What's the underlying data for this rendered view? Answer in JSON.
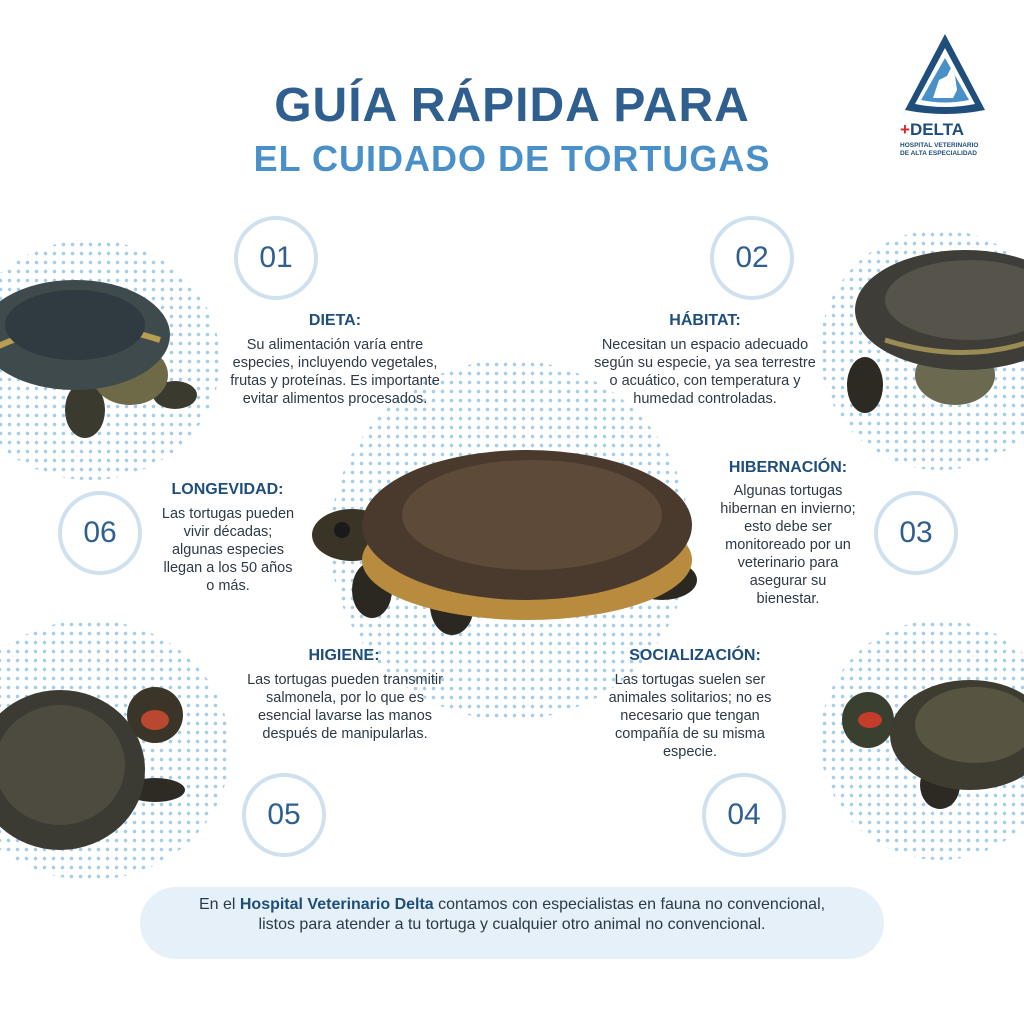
{
  "title": {
    "line1": "GUÍA RÁPIDA PARA",
    "line2": "EL CUIDADO DE TORTUGAS"
  },
  "logo": {
    "cross": "+",
    "name": "DELTA",
    "subtitle_line1": "HOSPITAL VETERINARIO",
    "subtitle_line2": "DE ALTA ESPECIALIDAD"
  },
  "sections": [
    {
      "number": "01",
      "title": "DIETA:",
      "text": "Su alimentación varía entre especies, incluyendo vegetales, frutas y proteínas. Es importante evitar alimentos procesados."
    },
    {
      "number": "02",
      "title": "HÁBITAT:",
      "text": "Necesitan un espacio adecuado según su especie, ya sea terrestre o acuático, con temperatura y humedad controladas."
    },
    {
      "number": "03",
      "title": "HIBERNACIÓN:",
      "text": "Algunas tortugas hibernan en invierno; esto debe ser monitoreado por un veterinario para asegurar su bienestar."
    },
    {
      "number": "04",
      "title": "SOCIALIZACIÓN:",
      "text": "Las tortugas suelen ser animales solitarios; no es necesario que tengan compañía de su misma especie."
    },
    {
      "number": "05",
      "title": "HIGIENE:",
      "text": "Las tortugas pueden transmitir salmonela, por lo que es esencial lavarse las manos después de manipularlas."
    },
    {
      "number": "06",
      "title": "LONGEVIDAD:",
      "text": "Las tortugas pueden vivir décadas; algunas especies llegan a los 50 años o más."
    }
  ],
  "footer": {
    "prefix": "En el ",
    "highlight": "Hospital Veterinario Delta",
    "suffix": " contamos con especialistas en fauna no convencional, listos para atender a tu tortuga y cualquier otro animal no convencional."
  },
  "colors": {
    "primary": "#2f5f8f",
    "accent": "#4a90c8",
    "ring": "#cfe1ef",
    "dots": "#9cc9e8",
    "footer_bg": "#e6f0f8",
    "logo_red": "#d9272e"
  }
}
